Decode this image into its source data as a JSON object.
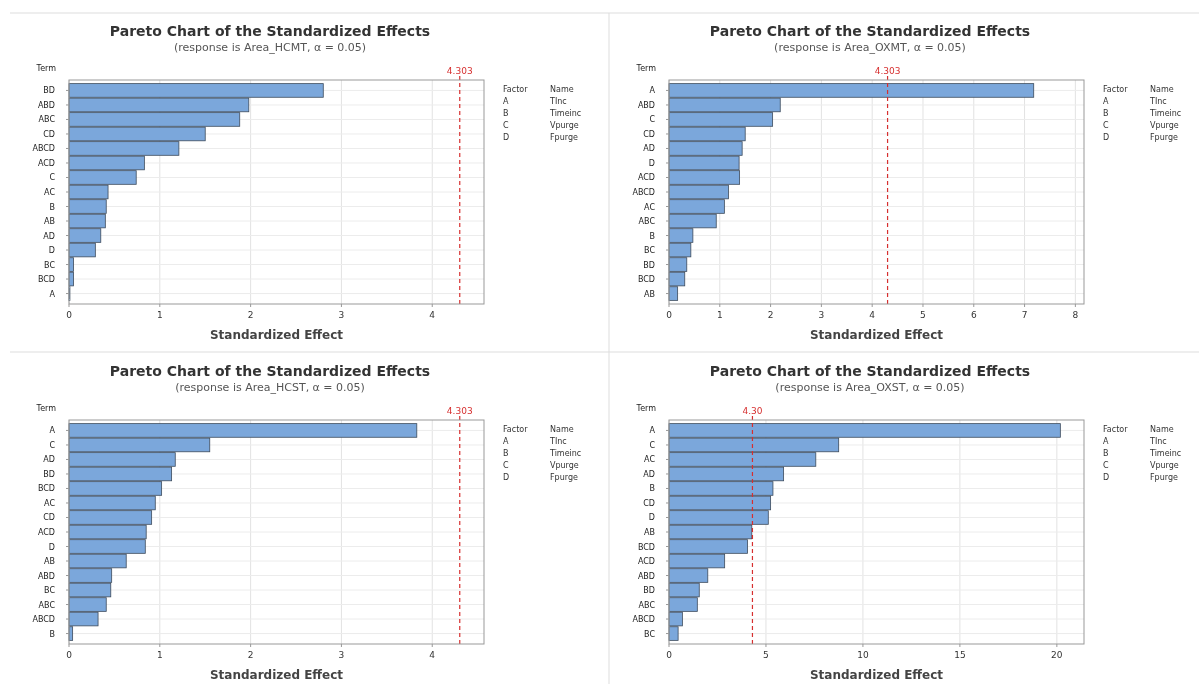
{
  "chart_data": [
    {
      "type": "bar",
      "orientation": "horizontal",
      "title": "Pareto Chart of the Standardized Effects",
      "subtitle": "(response is Area_HCMT, α = 0.05)",
      "ylabel": "Term",
      "xlabel": "Standardized Effect",
      "categories": [
        "BD",
        "ABD",
        "ABC",
        "CD",
        "ABCD",
        "ACD",
        "C",
        "AC",
        "B",
        "AB",
        "AD",
        "D",
        "BC",
        "BCD",
        "A"
      ],
      "values": [
        2.8,
        1.98,
        1.88,
        1.5,
        1.21,
        0.83,
        0.74,
        0.43,
        0.41,
        0.4,
        0.35,
        0.29,
        0.05,
        0.05,
        0.01
      ],
      "color": "#7ba7db",
      "xlim": [
        0,
        4.57
      ],
      "xticks": [
        0,
        1,
        2,
        3,
        4
      ],
      "grid": true,
      "ref_lines": [
        {
          "axis": "x",
          "value": 4.303,
          "label": "4.303",
          "color": "#d62f2f",
          "line_style": "dashed"
        }
      ],
      "annotations": [
        "Factor",
        "Name",
        "A",
        "TInc",
        "B",
        "Timeinc",
        "C",
        "Vpurge",
        "D",
        "Fpurge"
      ]
    },
    {
      "type": "bar",
      "orientation": "horizontal",
      "title": "Pareto Chart of the Standardized Effects",
      "subtitle": "(response is Area_OXMT, α = 0.05)",
      "ylabel": "Term",
      "xlabel": "Standardized Effect",
      "categories": [
        "A",
        "ABD",
        "C",
        "CD",
        "AD",
        "D",
        "ACD",
        "ABCD",
        "AC",
        "ABC",
        "B",
        "BC",
        "BD",
        "BCD",
        "AB"
      ],
      "values": [
        7.18,
        2.19,
        2.04,
        1.5,
        1.44,
        1.38,
        1.39,
        1.17,
        1.09,
        0.93,
        0.47,
        0.43,
        0.35,
        0.31,
        0.17
      ],
      "color": "#7ba7db",
      "xlim": [
        0,
        8.17
      ],
      "xticks": [
        0,
        1,
        2,
        3,
        4,
        5,
        6,
        7,
        8
      ],
      "grid": true,
      "ref_lines": [
        {
          "axis": "x",
          "value": 4.303,
          "label": "4.303",
          "color": "#d62f2f",
          "line_style": "dashed"
        }
      ],
      "annotations": [
        "Factor",
        "Name",
        "A",
        "TInc",
        "B",
        "Timeinc",
        "C",
        "Vpurge",
        "D",
        "Fpurge"
      ]
    },
    {
      "type": "bar",
      "orientation": "horizontal",
      "title": "Pareto Chart of the Standardized Effects",
      "subtitle": "(response is Area_HCST, α = 0.05)",
      "ylabel": "Term",
      "xlabel": "Standardized Effect",
      "categories": [
        "A",
        "C",
        "AD",
        "BD",
        "BCD",
        "AC",
        "CD",
        "ACD",
        "D",
        "AB",
        "ABD",
        "BC",
        "ABC",
        "ABCD",
        "B"
      ],
      "values": [
        3.83,
        1.55,
        1.17,
        1.13,
        1.02,
        0.95,
        0.91,
        0.85,
        0.84,
        0.63,
        0.47,
        0.46,
        0.41,
        0.32,
        0.04
      ],
      "color": "#7ba7db",
      "xlim": [
        0,
        4.57
      ],
      "xticks": [
        0,
        1,
        2,
        3,
        4
      ],
      "grid": true,
      "ref_lines": [
        {
          "axis": "x",
          "value": 4.303,
          "label": "4.303",
          "color": "#d62f2f",
          "line_style": "dashed"
        }
      ],
      "annotations": [
        "Factor",
        "Name",
        "A",
        "TInc",
        "B",
        "Timeinc",
        "C",
        "Vpurge",
        "D",
        "Fpurge"
      ]
    },
    {
      "type": "bar",
      "orientation": "horizontal",
      "title": "Pareto Chart of the Standardized Effects",
      "subtitle": "(response is Area_OXST, α = 0.05)",
      "ylabel": "Term",
      "xlabel": "Standardized Effect",
      "categories": [
        "A",
        "C",
        "AC",
        "AD",
        "B",
        "CD",
        "D",
        "AB",
        "BCD",
        "ACD",
        "ABD",
        "BD",
        "ABC",
        "ABCD",
        "BC"
      ],
      "values": [
        20.18,
        8.75,
        7.57,
        5.91,
        5.36,
        5.24,
        5.12,
        4.27,
        4.05,
        2.87,
        2.0,
        1.56,
        1.46,
        0.69,
        0.47
      ],
      "color": "#7ba7db",
      "xlim": [
        0,
        21.4
      ],
      "xticks": [
        0,
        5,
        10,
        15,
        20
      ],
      "grid": true,
      "ref_lines": [
        {
          "axis": "x",
          "value": 4.303,
          "label": "4.30",
          "color": "#d62f2f",
          "line_style": "dashed"
        }
      ],
      "annotations": [
        "Factor",
        "Name",
        "A",
        "TInc",
        "B",
        "Timeinc",
        "C",
        "Vpurge",
        "D",
        "Fpurge"
      ]
    }
  ]
}
